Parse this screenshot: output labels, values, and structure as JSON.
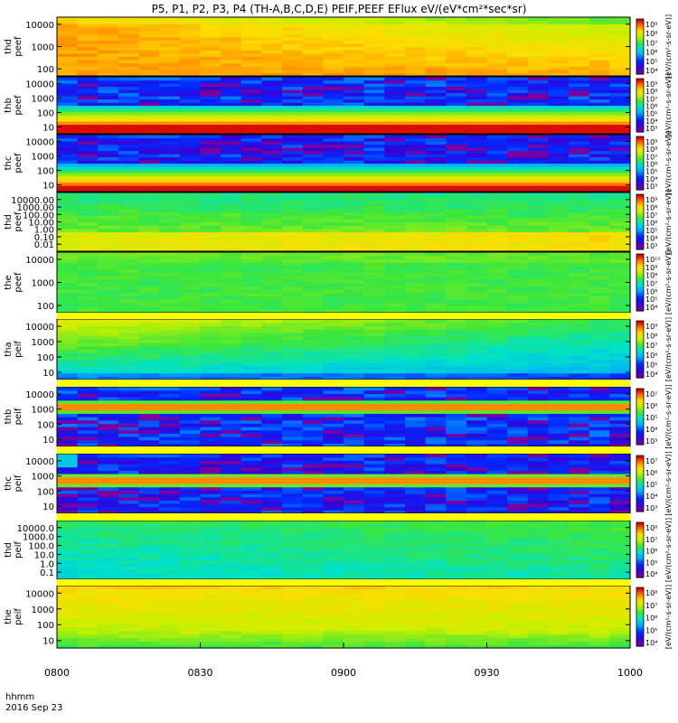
{
  "title": "P5, P1, P2, P3, P4 (TH-A,B,C,D,E) PEIF,PEEF EFlux eV/(eV*cm²*sec*sr)",
  "bottom_labels": {
    "time_label": "hhmm",
    "date_label": "2016 Sep 23"
  },
  "colorbar_unit_label": "[eV/(cm²-s-sr-eV)]",
  "chart_data": [
    {
      "type": "heatmap",
      "panel_label": [
        "thd",
        "peef"
      ],
      "yticks": [
        "10000",
        "1000",
        "100"
      ],
      "cbar_ticks": [
        "10⁹",
        "10⁸",
        "10⁷",
        "10⁶",
        "10⁵",
        "10⁴"
      ],
      "pattern": "thd_peef"
    },
    {
      "type": "heatmap",
      "panel_label": [
        "thb",
        "peef"
      ],
      "yticks": [
        "10000",
        "1000",
        "100",
        "10"
      ],
      "cbar_ticks": [
        "10⁹",
        "10⁸",
        "10⁷",
        "10⁶",
        "10⁵",
        "10⁴",
        "10³"
      ],
      "pattern": "thb_peef"
    },
    {
      "type": "heatmap",
      "panel_label": [
        "thc",
        "peef"
      ],
      "yticks": [
        "10000",
        "1000",
        "100",
        "10"
      ],
      "cbar_ticks": [
        "10⁹",
        "10⁸",
        "10⁷",
        "10⁶",
        "10⁵",
        "10⁴",
        "10³"
      ],
      "pattern": "thc_peef"
    },
    {
      "type": "heatmap",
      "panel_label": [
        "thd",
        "peef"
      ],
      "yticks": [
        "10000.00",
        "1000.00",
        "100.00",
        "10.00",
        "1.00",
        "0.10",
        "0.01"
      ],
      "cbar_ticks": [
        "10⁹",
        "10⁸",
        "10⁷",
        "10⁶",
        "10⁵",
        "10⁴",
        "10³"
      ],
      "pattern": "thd_peef_low"
    },
    {
      "type": "heatmap",
      "panel_label": [
        "the",
        "peef"
      ],
      "yticks": [
        "10000",
        "1000",
        "100"
      ],
      "cbar_ticks": [
        "10¹⁰",
        "10⁹",
        "10⁸",
        "10⁷",
        "10⁶",
        "10⁵",
        "10⁴"
      ],
      "pattern": "the_peef"
    },
    {
      "type": "heatmap",
      "panel_label": [
        "tha",
        "peif"
      ],
      "yticks": [
        "10000",
        "1000",
        "100",
        "10"
      ],
      "cbar_ticks": [
        "10⁹",
        "10⁸",
        "10⁷",
        "10⁶",
        "10⁵",
        "10⁴"
      ],
      "pattern": "tha_peif"
    },
    {
      "type": "heatmap",
      "panel_label": [
        "thb",
        "peif"
      ],
      "yticks": [
        "10000",
        "1000",
        "100",
        "10"
      ],
      "cbar_ticks": [
        "10⁷",
        "10⁶",
        "10⁵",
        "10⁴",
        "10³"
      ],
      "pattern": "thb_peif"
    },
    {
      "type": "heatmap",
      "panel_label": [
        "thc",
        "peif"
      ],
      "yticks": [
        "10000",
        "1000",
        "100",
        "10"
      ],
      "cbar_ticks": [
        "10⁷",
        "10⁶",
        "10⁵",
        "10⁴",
        "10³"
      ],
      "pattern": "thc_peif"
    },
    {
      "type": "heatmap",
      "panel_label": [
        "thd",
        "peif"
      ],
      "yticks": [
        "10000.0",
        "1000.0",
        "100.0",
        "10.0",
        "1.0",
        "0.1"
      ],
      "cbar_ticks": [
        "10⁸",
        "10⁷",
        "10⁶",
        "10⁵",
        "10⁴"
      ],
      "pattern": "thd_peif"
    },
    {
      "type": "heatmap",
      "panel_label": [
        "the",
        "peif"
      ],
      "yticks": [
        "10000",
        "1000",
        "100",
        "10"
      ],
      "cbar_ticks": [
        "10⁸",
        "10⁷",
        "10⁶",
        "10⁵",
        "10⁴"
      ],
      "pattern": "the_peif"
    }
  ],
  "x_axis": {
    "ticks": [
      "0800",
      "0830",
      "0900",
      "0930",
      "1000"
    ],
    "range": [
      "08:00",
      "10:00"
    ]
  },
  "colors": {
    "background": "#ffffff",
    "gap": "#ffff00"
  }
}
